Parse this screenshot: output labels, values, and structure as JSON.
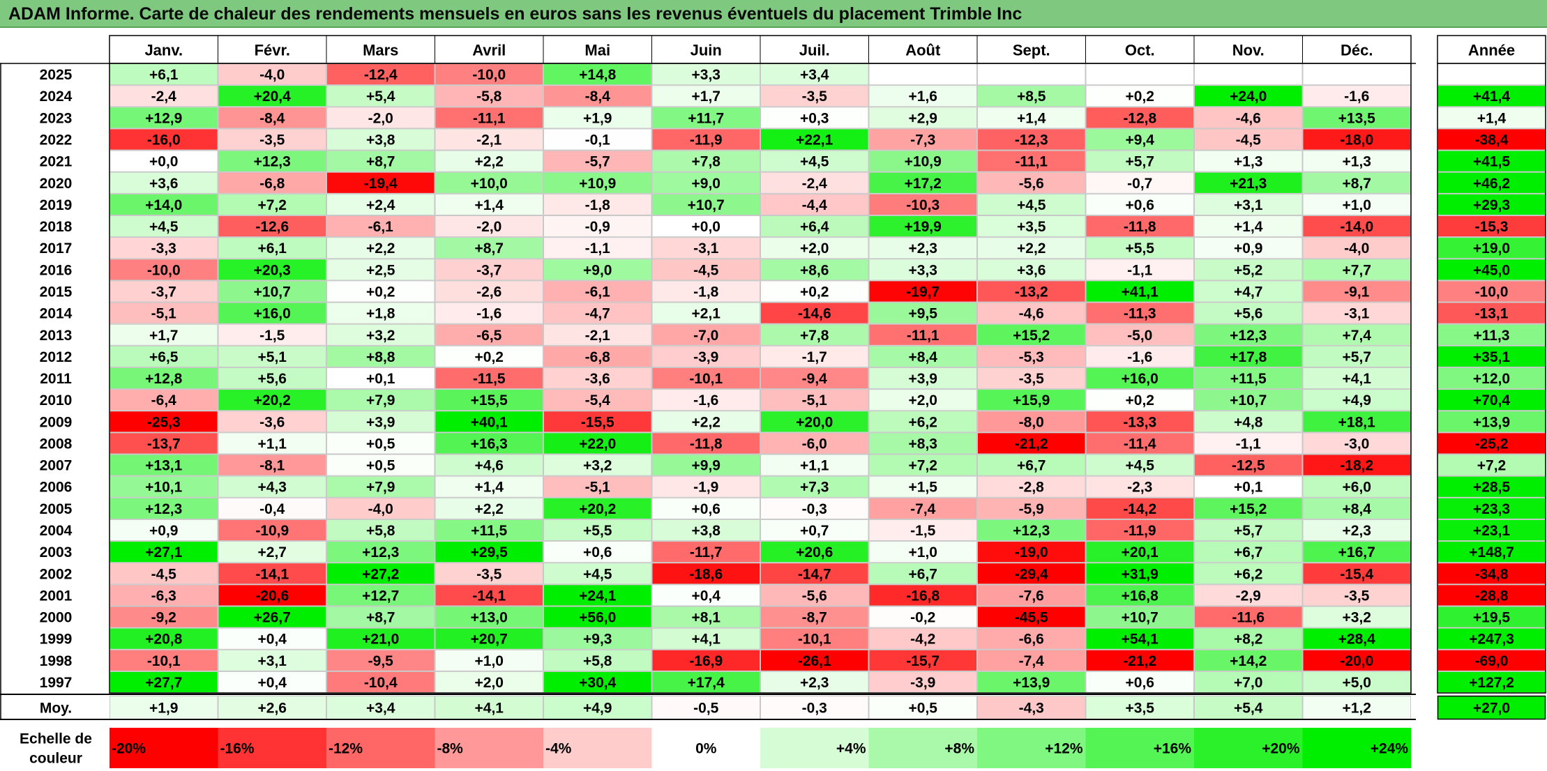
{
  "title": "ADAM Informe. Carte de chaleur des rendements mensuels en euros sans les revenus éventuels du placement Trimble Inc",
  "chart_data": {
    "type": "heatmap",
    "months": [
      "Janv.",
      "Févr.",
      "Mars",
      "Avril",
      "Mai",
      "Juin",
      "Juil.",
      "Août",
      "Sept.",
      "Oct.",
      "Nov.",
      "Déc."
    ],
    "annual_label": "Année",
    "average_label": "Moy.",
    "unit": "%",
    "rows": [
      {
        "year": "2025",
        "values": [
          6.1,
          -4.0,
          -12.4,
          -10.0,
          14.8,
          3.3,
          3.4,
          null,
          null,
          null,
          null,
          null
        ],
        "annual": null
      },
      {
        "year": "2024",
        "values": [
          -2.4,
          20.4,
          5.4,
          -5.8,
          -8.4,
          1.7,
          -3.5,
          1.6,
          8.5,
          0.2,
          24.0,
          -1.6
        ],
        "annual": 41.4
      },
      {
        "year": "2023",
        "values": [
          12.9,
          -8.4,
          -2.0,
          -11.1,
          1.9,
          11.7,
          0.3,
          2.9,
          1.4,
          -12.8,
          -4.6,
          13.5
        ],
        "annual": 1.4
      },
      {
        "year": "2022",
        "values": [
          -16.0,
          -3.5,
          3.8,
          -2.1,
          -0.1,
          -11.9,
          22.1,
          -7.3,
          -12.3,
          9.4,
          -4.5,
          -18.0
        ],
        "annual": -38.4
      },
      {
        "year": "2021",
        "values": [
          0.0,
          12.3,
          8.7,
          2.2,
          -5.7,
          7.8,
          4.5,
          10.9,
          -11.1,
          5.7,
          1.3,
          1.3
        ],
        "annual": 41.5
      },
      {
        "year": "2020",
        "values": [
          3.6,
          -6.8,
          -19.4,
          10.0,
          10.9,
          9.0,
          -2.4,
          17.2,
          -5.6,
          -0.7,
          21.3,
          8.7
        ],
        "annual": 46.2
      },
      {
        "year": "2019",
        "values": [
          14.0,
          7.2,
          2.4,
          1.4,
          -1.8,
          10.7,
          -4.4,
          -10.3,
          4.5,
          0.6,
          3.1,
          1.0
        ],
        "annual": 29.3
      },
      {
        "year": "2018",
        "values": [
          4.5,
          -12.6,
          -6.1,
          -2.0,
          -0.9,
          0.0,
          6.4,
          19.9,
          3.5,
          -11.8,
          1.4,
          -14.0
        ],
        "annual": -15.3
      },
      {
        "year": "2017",
        "values": [
          -3.3,
          6.1,
          2.2,
          8.7,
          -1.1,
          -3.1,
          2.0,
          2.3,
          2.2,
          5.5,
          0.9,
          -4.0
        ],
        "annual": 19.0
      },
      {
        "year": "2016",
        "values": [
          -10.0,
          20.3,
          2.5,
          -3.7,
          9.0,
          -4.5,
          8.6,
          3.3,
          3.6,
          -1.1,
          5.2,
          7.7
        ],
        "annual": 45.0
      },
      {
        "year": "2015",
        "values": [
          -3.7,
          10.7,
          0.2,
          -2.6,
          -6.1,
          -1.8,
          0.2,
          -19.7,
          -13.2,
          41.1,
          4.7,
          -9.1
        ],
        "annual": -10.0
      },
      {
        "year": "2014",
        "values": [
          -5.1,
          16.0,
          1.8,
          -1.6,
          -4.7,
          2.1,
          -14.6,
          9.5,
          -4.6,
          -11.3,
          5.6,
          -3.1
        ],
        "annual": -13.1
      },
      {
        "year": "2013",
        "values": [
          1.7,
          -1.5,
          3.2,
          -6.5,
          -2.1,
          -7.0,
          7.8,
          -11.1,
          15.2,
          -5.0,
          12.3,
          7.4
        ],
        "annual": 11.3
      },
      {
        "year": "2012",
        "values": [
          6.5,
          5.1,
          8.8,
          0.2,
          -6.8,
          -3.9,
          -1.7,
          8.4,
          -5.3,
          -1.6,
          17.8,
          5.7
        ],
        "annual": 35.1
      },
      {
        "year": "2011",
        "values": [
          12.8,
          5.6,
          0.1,
          -11.5,
          -3.6,
          -10.1,
          -9.4,
          3.9,
          -3.5,
          16.0,
          11.5,
          4.1
        ],
        "annual": 12.0
      },
      {
        "year": "2010",
        "values": [
          -6.4,
          20.2,
          7.9,
          15.5,
          -5.4,
          -1.6,
          -5.1,
          2.0,
          15.9,
          0.2,
          10.7,
          4.9
        ],
        "annual": 70.4
      },
      {
        "year": "2009",
        "values": [
          -25.3,
          -3.6,
          3.9,
          40.1,
          -15.5,
          2.2,
          20.0,
          6.2,
          -8.0,
          -13.3,
          4.8,
          18.1
        ],
        "annual": 13.9
      },
      {
        "year": "2008",
        "values": [
          -13.7,
          1.1,
          0.5,
          16.3,
          22.0,
          -11.8,
          -6.0,
          8.3,
          -21.2,
          -11.4,
          -1.1,
          -3.0
        ],
        "annual": -25.2
      },
      {
        "year": "2007",
        "values": [
          13.1,
          -8.1,
          0.5,
          4.6,
          3.2,
          9.9,
          1.1,
          7.2,
          6.7,
          4.5,
          -12.5,
          -18.2
        ],
        "annual": 7.2
      },
      {
        "year": "2006",
        "values": [
          10.1,
          4.3,
          7.9,
          1.4,
          -5.1,
          -1.9,
          7.3,
          1.5,
          -2.8,
          -2.3,
          0.1,
          6.0
        ],
        "annual": 28.5
      },
      {
        "year": "2005",
        "values": [
          12.3,
          -0.4,
          -4.0,
          2.2,
          20.2,
          0.6,
          -0.3,
          -7.4,
          -5.9,
          -14.2,
          15.2,
          8.4
        ],
        "annual": 23.3
      },
      {
        "year": "2004",
        "values": [
          0.9,
          -10.9,
          5.8,
          11.5,
          5.5,
          3.8,
          0.7,
          -1.5,
          12.3,
          -11.9,
          5.7,
          2.3
        ],
        "annual": 23.1
      },
      {
        "year": "2003",
        "values": [
          27.1,
          2.7,
          12.3,
          29.5,
          0.6,
          -11.7,
          20.6,
          1.0,
          -19.0,
          20.1,
          6.7,
          16.7
        ],
        "annual": 148.7
      },
      {
        "year": "2002",
        "values": [
          -4.5,
          -14.1,
          27.2,
          -3.5,
          4.5,
          -18.6,
          -14.7,
          6.7,
          -29.4,
          31.9,
          6.2,
          -15.4
        ],
        "annual": -34.8
      },
      {
        "year": "2001",
        "values": [
          -6.3,
          -20.6,
          12.7,
          -14.1,
          24.1,
          0.4,
          -5.6,
          -16.8,
          -7.6,
          16.8,
          -2.9,
          -3.5
        ],
        "annual": -28.8
      },
      {
        "year": "2000",
        "values": [
          -9.2,
          26.7,
          8.7,
          13.0,
          56.0,
          8.1,
          -8.7,
          -0.2,
          -45.5,
          10.7,
          -11.6,
          3.2
        ],
        "annual": 19.5
      },
      {
        "year": "1999",
        "values": [
          20.8,
          0.4,
          21.0,
          20.7,
          9.3,
          4.1,
          -10.1,
          -4.2,
          -6.6,
          54.1,
          8.2,
          28.4
        ],
        "annual": 247.3
      },
      {
        "year": "1998",
        "values": [
          -10.1,
          3.1,
          -9.5,
          1.0,
          5.8,
          -16.9,
          -26.1,
          -15.7,
          -7.4,
          -21.2,
          14.2,
          -20.0
        ],
        "annual": -69.0
      },
      {
        "year": "1997",
        "values": [
          27.7,
          0.4,
          -10.4,
          2.0,
          30.4,
          17.4,
          2.3,
          -3.9,
          13.9,
          0.6,
          7.0,
          5.0
        ],
        "annual": 127.2
      }
    ],
    "average": {
      "values": [
        1.9,
        2.6,
        3.4,
        4.1,
        4.9,
        -0.5,
        -0.3,
        0.5,
        -4.3,
        3.5,
        5.4,
        1.2
      ],
      "annual": 27.0
    },
    "scale": {
      "label_line1": "Echelle de",
      "label_line2": "couleur",
      "stops": [
        {
          "label": "-20%",
          "value": -20
        },
        {
          "label": "-16%",
          "value": -16
        },
        {
          "label": "-12%",
          "value": -12
        },
        {
          "label": "-8%",
          "value": -8
        },
        {
          "label": "-4%",
          "value": -4
        },
        {
          "label": "0%",
          "value": 0
        },
        {
          "label": "+4%",
          "value": 4
        },
        {
          "label": "+8%",
          "value": 8
        },
        {
          "label": "+12%",
          "value": 12
        },
        {
          "label": "+16%",
          "value": 16
        },
        {
          "label": "+20%",
          "value": 20
        },
        {
          "label": "+24%",
          "value": 24
        }
      ]
    },
    "colors": {
      "negative_max": "#ff0000",
      "neutral": "#ffffff",
      "positive_max": "#00ee00",
      "title_bar": "#7fc87f"
    }
  }
}
